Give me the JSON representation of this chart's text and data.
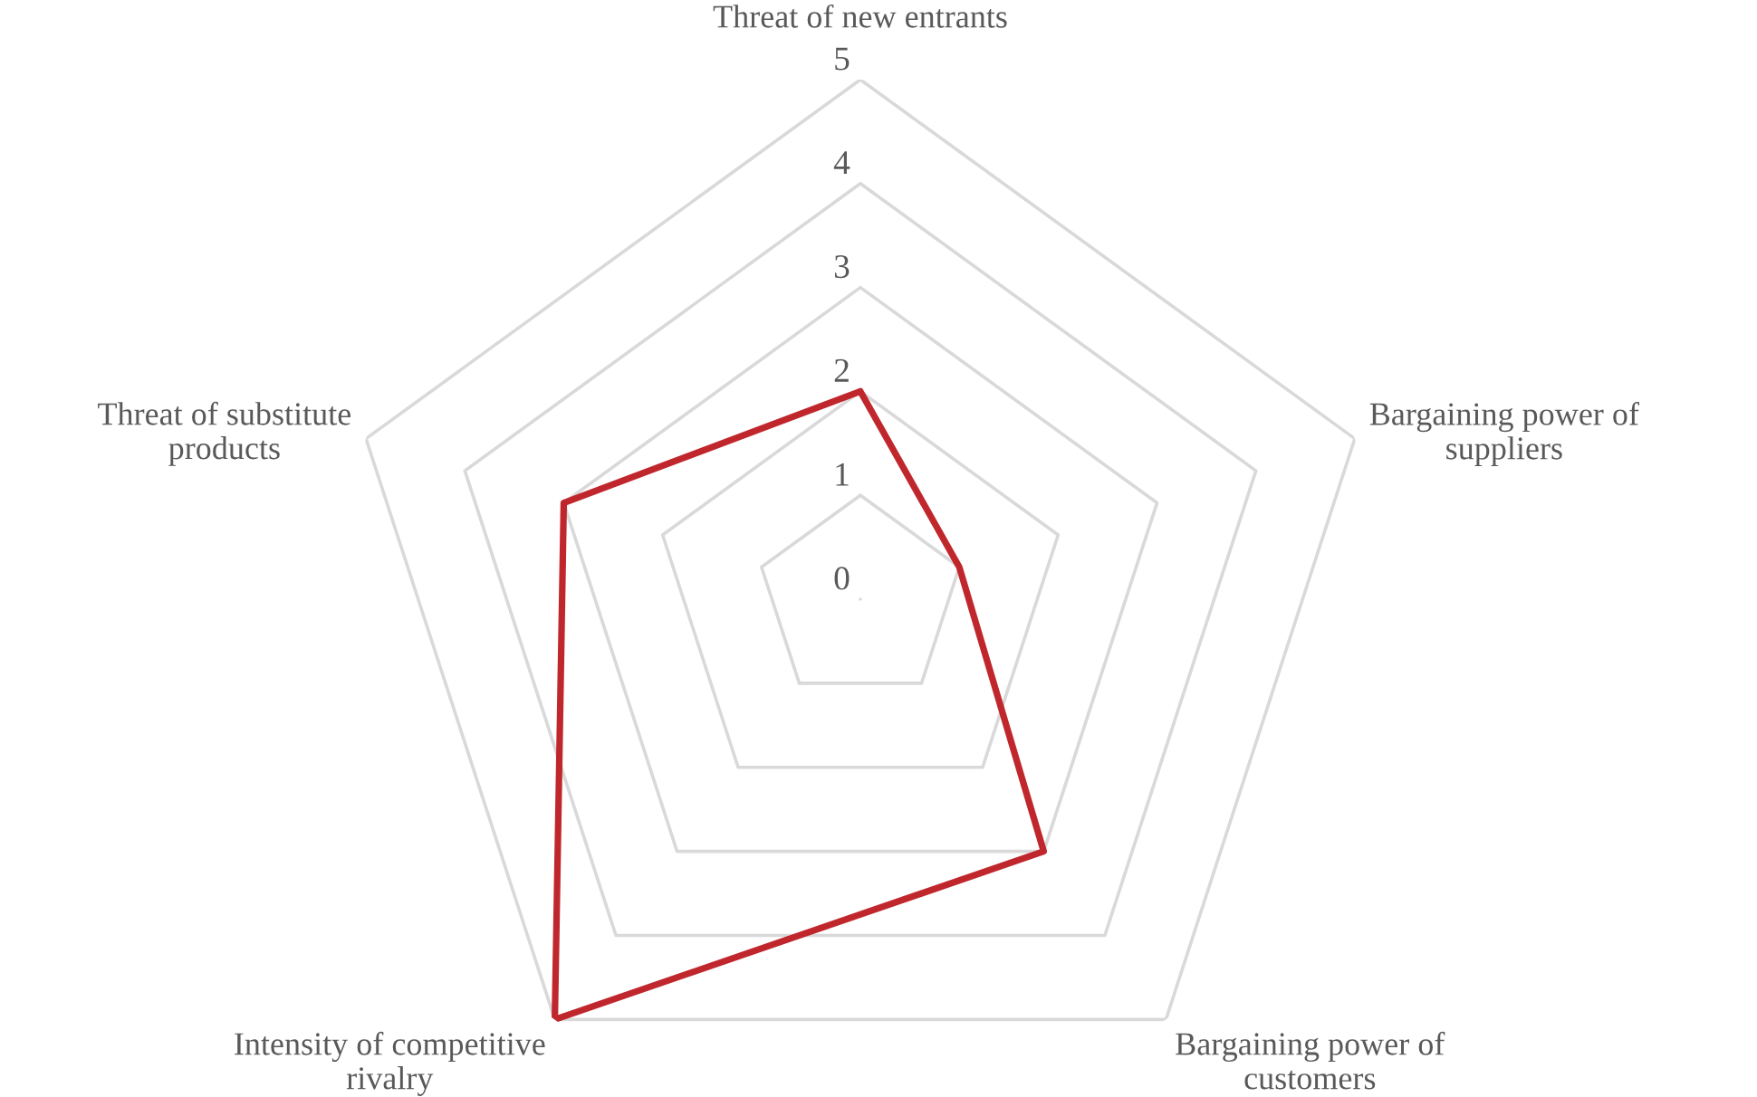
{
  "chart_data": {
    "type": "radar",
    "categories": [
      "Threat of new entrants",
      "Bargaining power of\nsuppliers",
      "Bargaining power of\ncustomers",
      "Intensity of competitive\nrivalry",
      "Threat of substitute\nproducts"
    ],
    "series": [
      {
        "color": "#c0272d",
        "values": [
          2,
          1,
          3,
          5,
          3
        ]
      }
    ],
    "ylim": [
      0,
      5
    ],
    "yticks": [
      0,
      1,
      2,
      3,
      4,
      5
    ],
    "grid": true
  }
}
